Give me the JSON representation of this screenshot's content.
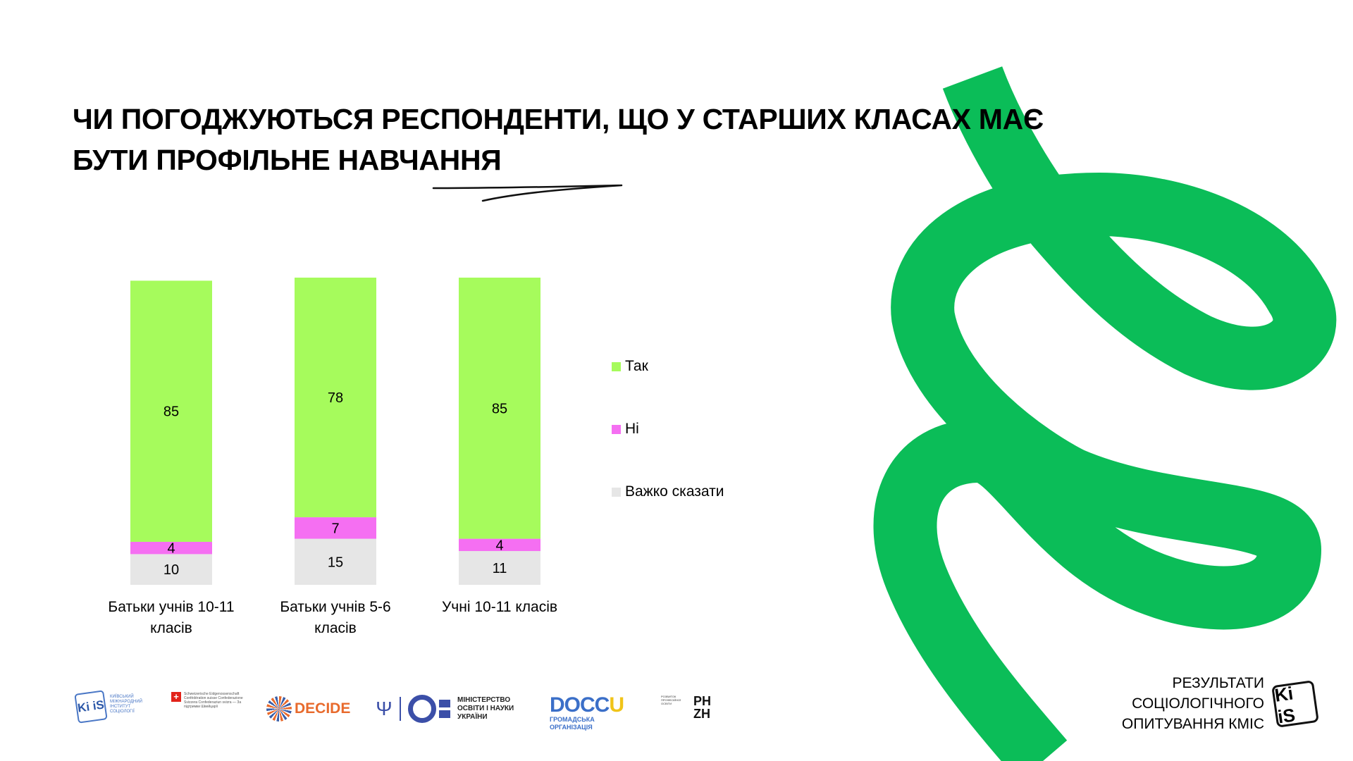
{
  "title": {
    "line1": "ЧИ ПОГОДЖУЮТЬСЯ РЕСПОНДЕНТИ, ЩО У СТАРШИХ КЛАСАХ МАЄ",
    "line2": "БУТИ ПРОФІЛЬНЕ НАВЧАННЯ"
  },
  "chart_data": {
    "type": "bar",
    "stacked": true,
    "categories": [
      "Батьки учнів 10-11 класів",
      "Батьки учнів 5-6 класів",
      "Учні 10-11 класів"
    ],
    "category_lines": [
      [
        "Батьки учнів 10-11",
        "класів"
      ],
      [
        "Батьки учнів 5-6",
        "класів"
      ],
      [
        "Учні 10-11 класів"
      ]
    ],
    "series": [
      {
        "name": "Важко сказати",
        "color": "#e6e6e6",
        "values": [
          10,
          15,
          11
        ]
      },
      {
        "name": "Ні",
        "color": "#f56ff2",
        "values": [
          4,
          7,
          4
        ]
      },
      {
        "name": "Так",
        "color": "#a6fb5c",
        "values": [
          85,
          78,
          85
        ]
      }
    ],
    "legend_order": [
      "Так",
      "Ні",
      "Важко сказати"
    ],
    "legend_position": "right",
    "ylim": [
      0,
      100
    ],
    "grid": false,
    "title": "",
    "xlabel": "",
    "ylabel": ""
  },
  "colors": {
    "accent_green": "#0bbd58",
    "title": "#000000"
  },
  "footer": {
    "kiis_label": "РЕЗУЛЬТАТИ\nСОЦІОЛОГІЧНОГО\nОПИТУВАННЯ КМІС",
    "kiis_mark": "Ki iS",
    "logos": {
      "kiis_small_mark": "Ki iS",
      "kiis_small_text": "КИЇВСЬКИЙ МІЖНАРОДНИЙ ІНСТИТУТ СОЦІОЛОГІЇ",
      "swiss_cross": "+",
      "swiss_text": "Schweizerische Eidgenossenschaft Confédération suisse Confederazione Svizzera Confederaziun svizra — За підтримки Швейцарії",
      "decide_name": "DECIDE",
      "mon_trident": "Ψ",
      "mon_text": "МІНІСТЕРСТВО ОСВІТИ І НАУКИ УКРАЇНИ",
      "docu_name_a": "DOCC",
      "docu_name_b": "U",
      "docu_sub": "ГРОМАДСЬКА ОРГАНІЗАЦІЯ",
      "rph_small": "РОЗВИТОК ПРОФЕСІЙНОЇ ОСВІТИ",
      "rph_big_1": "PH",
      "rph_big_2": "ZH"
    }
  }
}
